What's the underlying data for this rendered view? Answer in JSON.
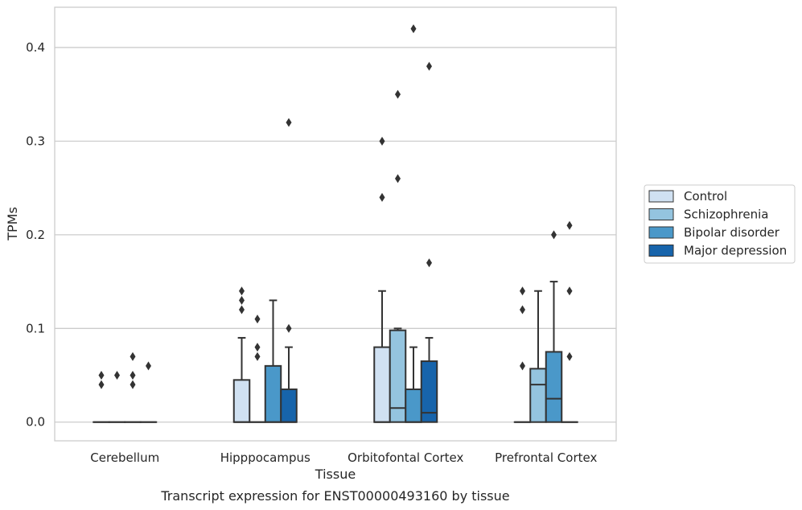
{
  "chart_data": {
    "type": "box",
    "xlabel": "Tissue",
    "ylabel": "TPMs",
    "caption": "Transcript expression for ENST00000493160 by tissue",
    "ylim": [
      -0.02,
      0.443
    ],
    "yticks": [
      0.0,
      0.1,
      0.2,
      0.3,
      0.4
    ],
    "ytick_labels": [
      "0.0",
      "0.1",
      "0.2",
      "0.3",
      "0.4"
    ],
    "grid": "horizontal",
    "legend_position": "right",
    "categories": [
      "Cerebellum",
      "Hipppocampus",
      "Orbitofontal Cortex",
      "Prefrontal Cortex"
    ],
    "series": [
      {
        "name": "Control",
        "color": "#d0e1f2",
        "boxes": [
          {
            "q1": 0,
            "median": 0,
            "q3": 0,
            "whislo": 0,
            "whishi": 0,
            "fliers": [
              0.04,
              0.05
            ]
          },
          {
            "q1": 0,
            "median": 0,
            "q3": 0.045,
            "whislo": 0,
            "whishi": 0.09,
            "fliers": [
              0.12,
              0.13,
              0.14
            ]
          },
          {
            "q1": 0,
            "median": 0,
            "q3": 0.08,
            "whislo": 0,
            "whishi": 0.14,
            "fliers": [
              0.24,
              0.3
            ]
          },
          {
            "q1": 0,
            "median": 0,
            "q3": 0,
            "whislo": 0,
            "whishi": 0,
            "fliers": [
              0.06,
              0.12,
              0.14
            ]
          }
        ]
      },
      {
        "name": "Schizophrenia",
        "color": "#94c4df",
        "boxes": [
          {
            "q1": 0,
            "median": 0,
            "q3": 0,
            "whislo": 0,
            "whishi": 0,
            "fliers": [
              0.05
            ]
          },
          {
            "q1": 0,
            "median": 0,
            "q3": 0,
            "whislo": 0,
            "whishi": 0,
            "fliers": [
              0.07,
              0.08,
              0.11
            ]
          },
          {
            "q1": 0,
            "median": 0.015,
            "q3": 0.098,
            "whislo": 0,
            "whishi": 0.1,
            "fliers": [
              0.26,
              0.35
            ]
          },
          {
            "q1": 0,
            "median": 0.04,
            "q3": 0.057,
            "whislo": 0,
            "whishi": 0.14,
            "fliers": []
          }
        ]
      },
      {
        "name": "Bipolar disorder",
        "color": "#4a98c9",
        "boxes": [
          {
            "q1": 0,
            "median": 0,
            "q3": 0,
            "whislo": 0,
            "whishi": 0,
            "fliers": [
              0.04,
              0.05,
              0.07
            ]
          },
          {
            "q1": 0,
            "median": 0,
            "q3": 0.06,
            "whislo": 0,
            "whishi": 0.13,
            "fliers": []
          },
          {
            "q1": 0,
            "median": 0,
            "q3": 0.035,
            "whislo": 0,
            "whishi": 0.08,
            "fliers": [
              0.42
            ]
          },
          {
            "q1": 0,
            "median": 0.025,
            "q3": 0.075,
            "whislo": 0,
            "whishi": 0.15,
            "fliers": [
              0.2
            ]
          }
        ]
      },
      {
        "name": "Major depression",
        "color": "#1764ab",
        "boxes": [
          {
            "q1": 0,
            "median": 0,
            "q3": 0,
            "whislo": 0,
            "whishi": 0,
            "fliers": [
              0.06
            ]
          },
          {
            "q1": 0,
            "median": 0,
            "q3": 0.035,
            "whislo": 0,
            "whishi": 0.08,
            "fliers": [
              0.1,
              0.32
            ]
          },
          {
            "q1": 0,
            "median": 0.01,
            "q3": 0.065,
            "whislo": 0,
            "whishi": 0.09,
            "fliers": [
              0.17,
              0.38
            ]
          },
          {
            "q1": 0,
            "median": 0,
            "q3": 0,
            "whislo": 0,
            "whishi": 0,
            "fliers": [
              0.07,
              0.14,
              0.21
            ]
          }
        ]
      }
    ]
  }
}
